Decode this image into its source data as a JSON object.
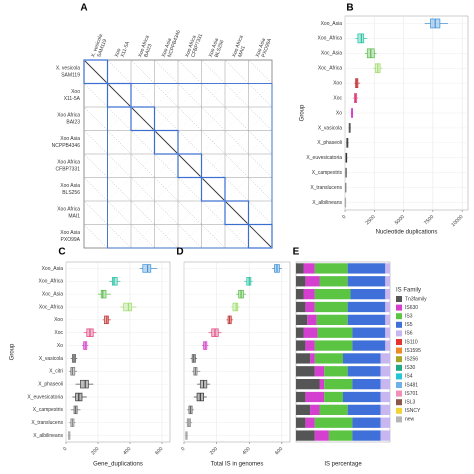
{
  "panel_a": {
    "panel": "A",
    "genomes": [
      {
        "name": "X. vesicola",
        "strain": "SAM119",
        "color": "#111111"
      },
      {
        "name": "Xoo",
        "strain": "X11-5A",
        "color": "#d6338a"
      },
      {
        "name": "Xoo Africa",
        "strain": "BAI23",
        "color": "#b0302a"
      },
      {
        "name": "Xoo Asia",
        "strain": "NCPPB4346",
        "color": "#8b1a1a"
      },
      {
        "name": "Xoo Africa",
        "strain": "CFBP7331",
        "color": "#8ccc3c"
      },
      {
        "name": "Xoo Asia",
        "strain": "BLS256",
        "color": "#2eaa7a"
      },
      {
        "name": "Xoo Africa",
        "strain": "MAI1",
        "color": "#26b4c8"
      },
      {
        "name": "Xoo Asia",
        "strain": "PXO99A",
        "color": "#4a7fd0"
      }
    ]
  },
  "chart_data": [
    {
      "type": "box",
      "panel": "B",
      "x_label": "Nucleotide duplications",
      "y_label": "Group",
      "categories": [
        "Xoo_Asia",
        "Xoo_Africa",
        "Xoc_Asia",
        "Xoc_Africa",
        "Xoo",
        "Xoc",
        "Xo",
        "X_vasicola",
        "X_phaseoli",
        "X_euvesicatoria",
        "X_campestris",
        "X_translucens",
        "X_albilineans"
      ],
      "colors": [
        "#3b8fd6",
        "#1fbfa0",
        "#58b947",
        "#9fdc6a",
        "#c0302f",
        "#e0407a",
        "#d23cc8",
        "#555555",
        "#444444",
        "#333333",
        "#666666",
        "#888888",
        "#aaaaaa"
      ],
      "boxes": [
        [
          6800,
          7300,
          7700,
          8100,
          8800
        ],
        [
          900,
          1100,
          1400,
          1600,
          1900
        ],
        [
          1700,
          1900,
          2200,
          2500,
          2700
        ],
        [
          2400,
          2600,
          2800,
          3000,
          3200
        ],
        [
          800,
          900,
          1000,
          1100,
          1300
        ],
        [
          700,
          800,
          900,
          1000,
          1100
        ],
        [
          500,
          550,
          600,
          650,
          700
        ],
        [
          300,
          350,
          400,
          450,
          500
        ],
        [
          100,
          150,
          200,
          250,
          300
        ],
        [
          50,
          80,
          120,
          150,
          200
        ],
        [
          30,
          60,
          90,
          120,
          160
        ],
        [
          20,
          40,
          60,
          80,
          120
        ],
        [
          10,
          20,
          30,
          40,
          60
        ]
      ],
      "xlim": [
        0,
        10500
      ],
      "xticks": [
        0,
        2500,
        5000,
        7500,
        10000
      ]
    },
    {
      "type": "box",
      "panel": "C",
      "x_label": "Gene_duplications",
      "y_label": "Group",
      "categories": [
        "Xoo_Asia",
        "Xoo_Africa",
        "Xoc_Asia",
        "Xoc_Africa",
        "Xoo",
        "Xoc",
        "Xo",
        "X_vasicola",
        "X_citri",
        "X_phaseoli",
        "X_euvesicatoria",
        "X_campestris",
        "X_translucens",
        "X_albilineans"
      ],
      "colors": [
        "#3b8fd6",
        "#1fbfa0",
        "#58b947",
        "#9fdc6a",
        "#c0302f",
        "#e0407a",
        "#d23cc8",
        "#555555",
        "#777777",
        "#444444",
        "#333333",
        "#666666",
        "#888888",
        "#aaaaaa"
      ],
      "boxes": [
        [
          460,
          480,
          510,
          530,
          570
        ],
        [
          270,
          290,
          300,
          320,
          340
        ],
        [
          200,
          220,
          230,
          250,
          280
        ],
        [
          340,
          360,
          390,
          410,
          440
        ],
        [
          230,
          240,
          255,
          265,
          280
        ],
        [
          110,
          130,
          150,
          170,
          190
        ],
        [
          100,
          110,
          120,
          130,
          140
        ],
        [
          30,
          40,
          50,
          60,
          70
        ],
        [
          20,
          30,
          40,
          55,
          70
        ],
        [
          60,
          90,
          120,
          140,
          170
        ],
        [
          40,
          60,
          80,
          100,
          130
        ],
        [
          30,
          50,
          60,
          70,
          90
        ],
        [
          20,
          30,
          40,
          50,
          60
        ],
        [
          10,
          15,
          20,
          25,
          30
        ]
      ],
      "xlim": [
        0,
        650
      ],
      "xticks": [
        0,
        200,
        400,
        600
      ]
    },
    {
      "type": "box",
      "panel": "D",
      "x_label": "Total IS in genomes",
      "colors": [
        "#3b8fd6",
        "#1fbfa0",
        "#58b947",
        "#9fdc6a",
        "#c0302f",
        "#e0407a",
        "#d23cc8",
        "#555555",
        "#777777",
        "#444444",
        "#333333",
        "#666666",
        "#888888",
        "#aaaaaa"
      ],
      "boxes": [
        [
          540,
          555,
          570,
          585,
          600
        ],
        [
          370,
          385,
          400,
          410,
          420
        ],
        [
          320,
          335,
          350,
          365,
          380
        ],
        [
          290,
          300,
          320,
          330,
          340
        ],
        [
          260,
          270,
          280,
          290,
          300
        ],
        [
          150,
          170,
          190,
          210,
          230
        ],
        [
          110,
          120,
          130,
          140,
          150
        ],
        [
          40,
          50,
          60,
          70,
          80
        ],
        [
          50,
          60,
          70,
          80,
          100
        ],
        [
          80,
          100,
          120,
          140,
          160
        ],
        [
          60,
          80,
          100,
          120,
          140
        ],
        [
          20,
          30,
          40,
          50,
          60
        ],
        [
          10,
          20,
          30,
          40,
          50
        ],
        [
          5,
          10,
          15,
          20,
          25
        ]
      ],
      "xlim": [
        0,
        650
      ],
      "xticks": [
        0,
        200,
        400,
        600
      ]
    },
    {
      "type": "stacked_bar",
      "panel": "E",
      "x_label": "IS percentage",
      "legend_title": "IS Family",
      "xlim": [
        0,
        100
      ],
      "series": [
        {
          "name": "Tn3family",
          "color": "#555555",
          "values": [
            8,
            10,
            8,
            10,
            12,
            8,
            10,
            15,
            20,
            25,
            10,
            15,
            10,
            20
          ]
        },
        {
          "name": "IS630",
          "color": "#d43fd0",
          "values": [
            12,
            15,
            12,
            10,
            10,
            15,
            10,
            5,
            10,
            5,
            20,
            10,
            10,
            15
          ]
        },
        {
          "name": "IS3",
          "color": "#5cc443",
          "values": [
            35,
            30,
            38,
            35,
            33,
            37,
            40,
            30,
            25,
            30,
            20,
            30,
            40,
            25
          ]
        },
        {
          "name": "IS5",
          "color": "#3f6fd8",
          "values": [
            40,
            40,
            37,
            40,
            40,
            35,
            35,
            40,
            35,
            30,
            40,
            35,
            30,
            30
          ]
        },
        {
          "name": "IS6",
          "color": "#c7b6ef",
          "values": [
            5,
            5,
            5,
            5,
            5,
            5,
            5,
            10,
            10,
            10,
            10,
            10,
            10,
            10
          ]
        },
        {
          "name": "IS110",
          "color": "#e3342f",
          "values": [
            0,
            0,
            0,
            0,
            0,
            0,
            0,
            0,
            0,
            0,
            0,
            0,
            0,
            0
          ]
        },
        {
          "name": "IS1595",
          "color": "#f08a24",
          "values": [
            0,
            0,
            0,
            0,
            0,
            0,
            0,
            0,
            0,
            0,
            0,
            0,
            0,
            0
          ]
        },
        {
          "name": "IS256",
          "color": "#a6a626",
          "values": [
            0,
            0,
            0,
            0,
            0,
            0,
            0,
            0,
            0,
            0,
            0,
            0,
            0,
            0
          ]
        },
        {
          "name": "IS30",
          "color": "#22a884",
          "values": [
            0,
            0,
            0,
            0,
            0,
            0,
            0,
            0,
            0,
            0,
            0,
            0,
            0,
            0
          ]
        },
        {
          "name": "IS4",
          "color": "#27c4d8",
          "values": [
            0,
            0,
            0,
            0,
            0,
            0,
            0,
            0,
            0,
            0,
            0,
            0,
            0,
            0
          ]
        },
        {
          "name": "IS481",
          "color": "#6fb0e8",
          "values": [
            0,
            0,
            0,
            0,
            0,
            0,
            0,
            0,
            0,
            0,
            0,
            0,
            0,
            0
          ]
        },
        {
          "name": "IS701",
          "color": "#f18fb8",
          "values": [
            0,
            0,
            0,
            0,
            0,
            0,
            0,
            0,
            0,
            0,
            0,
            0,
            0,
            0
          ]
        },
        {
          "name": "ISL3",
          "color": "#8c564b",
          "values": [
            0,
            0,
            0,
            0,
            0,
            0,
            0,
            0,
            0,
            0,
            0,
            0,
            0,
            0
          ]
        },
        {
          "name": "ISNCY",
          "color": "#f2d43a",
          "values": [
            0,
            0,
            0,
            0,
            0,
            0,
            0,
            0,
            0,
            0,
            0,
            0,
            0,
            0
          ]
        },
        {
          "name": "new",
          "color": "#b5b5b5",
          "values": [
            0,
            0,
            0,
            0,
            0,
            0,
            0,
            0,
            0,
            0,
            0,
            0,
            0,
            0
          ]
        }
      ]
    }
  ]
}
